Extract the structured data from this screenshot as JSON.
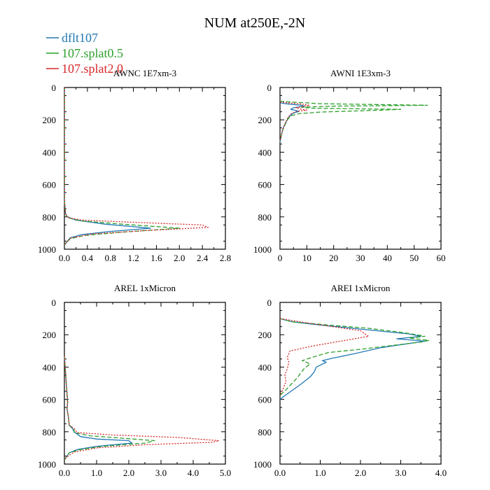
{
  "figure": {
    "title": "NUM at250E,-2N"
  },
  "legend": [
    {
      "label": "dflt107",
      "color": "#1f77b4",
      "dash": "solid"
    },
    {
      "label": "107.splat0.5",
      "color": "#2ca02c",
      "dash": "dashed"
    },
    {
      "label": "107.splat2.0",
      "color": "#d62728",
      "dash": "dotted"
    }
  ],
  "chart_data": [
    {
      "type": "line",
      "title": "AWNC  1E7xm-3",
      "xlim": [
        0,
        2.8
      ],
      "ylim": [
        1000,
        0
      ],
      "xticks": [
        0,
        0.4,
        0.8,
        1.2,
        1.6,
        2.0,
        2.4,
        2.8
      ],
      "xtick_labels": [
        "0.0",
        "0.4",
        "0.8",
        "1.2",
        "1.6",
        "2.0",
        "2.4",
        "2.8"
      ],
      "yticks": [
        0,
        200,
        400,
        600,
        800,
        1000
      ],
      "ytick_labels": [
        "0",
        "200",
        "400",
        "600",
        "800",
        "1000"
      ],
      "series": [
        {
          "name": "dflt107",
          "points": [
            [
              0,
              0
            ],
            [
              0,
              700
            ],
            [
              0.02,
              780
            ],
            [
              0.05,
              800
            ],
            [
              0.2,
              820
            ],
            [
              0.7,
              845
            ],
            [
              1.5,
              870
            ],
            [
              0.8,
              890
            ],
            [
              0.3,
              910
            ],
            [
              0.1,
              930
            ],
            [
              0.03,
              960
            ],
            [
              0,
              975
            ]
          ]
        },
        {
          "name": "107.splat0.5",
          "points": [
            [
              0,
              0
            ],
            [
              0,
              700
            ],
            [
              0.02,
              780
            ],
            [
              0.05,
              805
            ],
            [
              0.3,
              825
            ],
            [
              1.0,
              845
            ],
            [
              2.0,
              870
            ],
            [
              1.0,
              895
            ],
            [
              0.35,
              915
            ],
            [
              0.1,
              935
            ],
            [
              0.03,
              960
            ],
            [
              0,
              975
            ]
          ]
        },
        {
          "name": "107.splat2.0",
          "points": [
            [
              0,
              0
            ],
            [
              0,
              700
            ],
            [
              0.02,
              780
            ],
            [
              0.06,
              805
            ],
            [
              0.3,
              820
            ],
            [
              1.3,
              835
            ],
            [
              2.4,
              850
            ],
            [
              2.5,
              865
            ],
            [
              1.4,
              885
            ],
            [
              0.5,
              905
            ],
            [
              0.12,
              930
            ],
            [
              0.03,
              960
            ],
            [
              0,
              975
            ]
          ]
        }
      ]
    },
    {
      "type": "line",
      "title": "AWNI  1E3xm-3",
      "xlim": [
        0,
        60
      ],
      "ylim": [
        1000,
        0
      ],
      "xticks": [
        0,
        10,
        20,
        30,
        40,
        50,
        60
      ],
      "xtick_labels": [
        "0",
        "10",
        "20",
        "30",
        "40",
        "50",
        "60"
      ],
      "yticks": [
        0,
        200,
        400,
        600,
        800,
        1000
      ],
      "ytick_labels": [
        "0",
        "200",
        "400",
        "600",
        "800",
        "1000"
      ],
      "series": [
        {
          "name": "dflt107",
          "points": [
            [
              0,
              95
            ],
            [
              2,
              100
            ],
            [
              5,
              105
            ],
            [
              8,
              110
            ],
            [
              9,
              115
            ],
            [
              5,
              125
            ],
            [
              4,
              135
            ],
            [
              6,
              142
            ],
            [
              7,
              148
            ],
            [
              5,
              158
            ],
            [
              4,
              170
            ],
            [
              3,
              190
            ],
            [
              2,
              220
            ],
            [
              1,
              260
            ],
            [
              0.5,
              300
            ],
            [
              0,
              340
            ]
          ]
        },
        {
          "name": "107.splat0.5",
          "points": [
            [
              0,
              85
            ],
            [
              4,
              90
            ],
            [
              10,
              95
            ],
            [
              14,
              100
            ],
            [
              55,
              110
            ],
            [
              20,
              115
            ],
            [
              8,
              122
            ],
            [
              12,
              128
            ],
            [
              45,
              135
            ],
            [
              38,
              140
            ],
            [
              15,
              152
            ],
            [
              7,
              162
            ],
            [
              4,
              175
            ],
            [
              3,
              195
            ],
            [
              2,
              225
            ],
            [
              1,
              265
            ],
            [
              0,
              330
            ]
          ]
        },
        {
          "name": "107.splat2.0",
          "points": [
            [
              0,
              90
            ],
            [
              3,
              95
            ],
            [
              7,
              100
            ],
            [
              11,
              110
            ],
            [
              9,
              115
            ],
            [
              6,
              125
            ],
            [
              8,
              135
            ],
            [
              10,
              140
            ],
            [
              6,
              148
            ],
            [
              4,
              165
            ],
            [
              3,
              185
            ],
            [
              2,
              220
            ],
            [
              1,
              260
            ],
            [
              0,
              330
            ]
          ]
        }
      ]
    },
    {
      "type": "line",
      "title": "AREL  1xMicron",
      "xlim": [
        0,
        5.0
      ],
      "ylim": [
        1000,
        0
      ],
      "xticks": [
        0,
        1,
        2,
        3,
        4,
        5
      ],
      "xtick_labels": [
        "0.0",
        "1.0",
        "2.0",
        "3.0",
        "4.0",
        "5.0"
      ],
      "yticks": [
        0,
        200,
        400,
        600,
        800,
        1000
      ],
      "ytick_labels": [
        "0",
        "200",
        "400",
        "600",
        "800",
        "1000"
      ],
      "series": [
        {
          "name": "dflt107",
          "points": [
            [
              0,
              330
            ],
            [
              0.05,
              480
            ],
            [
              0.08,
              560
            ],
            [
              0.1,
              620
            ],
            [
              0.08,
              660
            ],
            [
              0.12,
              700
            ],
            [
              0.15,
              760
            ],
            [
              0.25,
              780
            ],
            [
              0.3,
              800
            ],
            [
              0.5,
              830
            ],
            [
              1.0,
              845
            ],
            [
              2.0,
              855
            ],
            [
              2.1,
              870
            ],
            [
              1.0,
              890
            ],
            [
              0.4,
              910
            ],
            [
              0.15,
              930
            ],
            [
              0.05,
              960
            ],
            [
              0,
              975
            ]
          ]
        },
        {
          "name": "107.splat0.5",
          "points": [
            [
              0,
              330
            ],
            [
              0.05,
              480
            ],
            [
              0.08,
              560
            ],
            [
              0.1,
              620
            ],
            [
              0.08,
              660
            ],
            [
              0.12,
              700
            ],
            [
              0.15,
              760
            ],
            [
              0.3,
              780
            ],
            [
              0.3,
              805
            ],
            [
              0.8,
              825
            ],
            [
              1.8,
              840
            ],
            [
              2.8,
              855
            ],
            [
              2.5,
              870
            ],
            [
              1.2,
              890
            ],
            [
              0.5,
              910
            ],
            [
              0.15,
              930
            ],
            [
              0.05,
              960
            ],
            [
              0,
              975
            ]
          ]
        },
        {
          "name": "107.splat2.0",
          "points": [
            [
              0,
              330
            ],
            [
              0.05,
              480
            ],
            [
              0.08,
              560
            ],
            [
              0.1,
              620
            ],
            [
              0.08,
              660
            ],
            [
              0.12,
              700
            ],
            [
              0.15,
              760
            ],
            [
              0.3,
              780
            ],
            [
              0.4,
              805
            ],
            [
              1.5,
              820
            ],
            [
              3.5,
              835
            ],
            [
              4.8,
              855
            ],
            [
              4.6,
              865
            ],
            [
              2.5,
              880
            ],
            [
              1.0,
              900
            ],
            [
              0.3,
              925
            ],
            [
              0.05,
              960
            ],
            [
              0,
              975
            ]
          ]
        }
      ]
    },
    {
      "type": "line",
      "title": "AREI  1xMicron",
      "xlim": [
        0,
        4.0
      ],
      "ylim": [
        1000,
        0
      ],
      "xticks": [
        0,
        1,
        2,
        3,
        4
      ],
      "xtick_labels": [
        "0.0",
        "1.0",
        "2.0",
        "3.0",
        "4.0"
      ],
      "yticks": [
        0,
        200,
        400,
        600,
        800,
        1000
      ],
      "ytick_labels": [
        "0",
        "200",
        "400",
        "600",
        "800",
        "1000"
      ],
      "series": [
        {
          "name": "dflt107",
          "points": [
            [
              0,
              100
            ],
            [
              0.3,
              120
            ],
            [
              1.0,
              140
            ],
            [
              2.0,
              165
            ],
            [
              3.2,
              195
            ],
            [
              3.5,
              210
            ],
            [
              2.9,
              225
            ],
            [
              3.6,
              240
            ],
            [
              2.5,
              280
            ],
            [
              1.8,
              320
            ],
            [
              1.3,
              345
            ],
            [
              1.05,
              360
            ],
            [
              1.15,
              370
            ],
            [
              0.9,
              400
            ],
            [
              0.85,
              430
            ],
            [
              0.75,
              460
            ],
            [
              0.55,
              500
            ],
            [
              0.3,
              545
            ],
            [
              0.1,
              580
            ],
            [
              0,
              600
            ]
          ]
        },
        {
          "name": "107.splat0.5",
          "points": [
            [
              0,
              100
            ],
            [
              0.3,
              120
            ],
            [
              1.2,
              140
            ],
            [
              2.2,
              160
            ],
            [
              3.0,
              185
            ],
            [
              3.4,
              200
            ],
            [
              3.6,
              210
            ],
            [
              3.2,
              220
            ],
            [
              3.7,
              235
            ],
            [
              3.5,
              245
            ],
            [
              2.0,
              290
            ],
            [
              1.2,
              310
            ],
            [
              0.8,
              340
            ],
            [
              0.55,
              360
            ],
            [
              0.75,
              380
            ],
            [
              0.6,
              410
            ],
            [
              0.5,
              440
            ],
            [
              0.45,
              460
            ],
            [
              0.3,
              500
            ],
            [
              0.15,
              540
            ],
            [
              0,
              575
            ]
          ]
        },
        {
          "name": "107.splat2.0",
          "points": [
            [
              0,
              100
            ],
            [
              0.5,
              120
            ],
            [
              1.3,
              150
            ],
            [
              2.0,
              175
            ],
            [
              2.2,
              210
            ],
            [
              1.5,
              240
            ],
            [
              0.8,
              270
            ],
            [
              0.25,
              300
            ],
            [
              0.18,
              340
            ],
            [
              0.22,
              370
            ],
            [
              0.18,
              410
            ],
            [
              0.12,
              450
            ],
            [
              0.15,
              490
            ],
            [
              0.1,
              520
            ],
            [
              0.05,
              550
            ],
            [
              0,
              570
            ]
          ]
        }
      ]
    }
  ]
}
